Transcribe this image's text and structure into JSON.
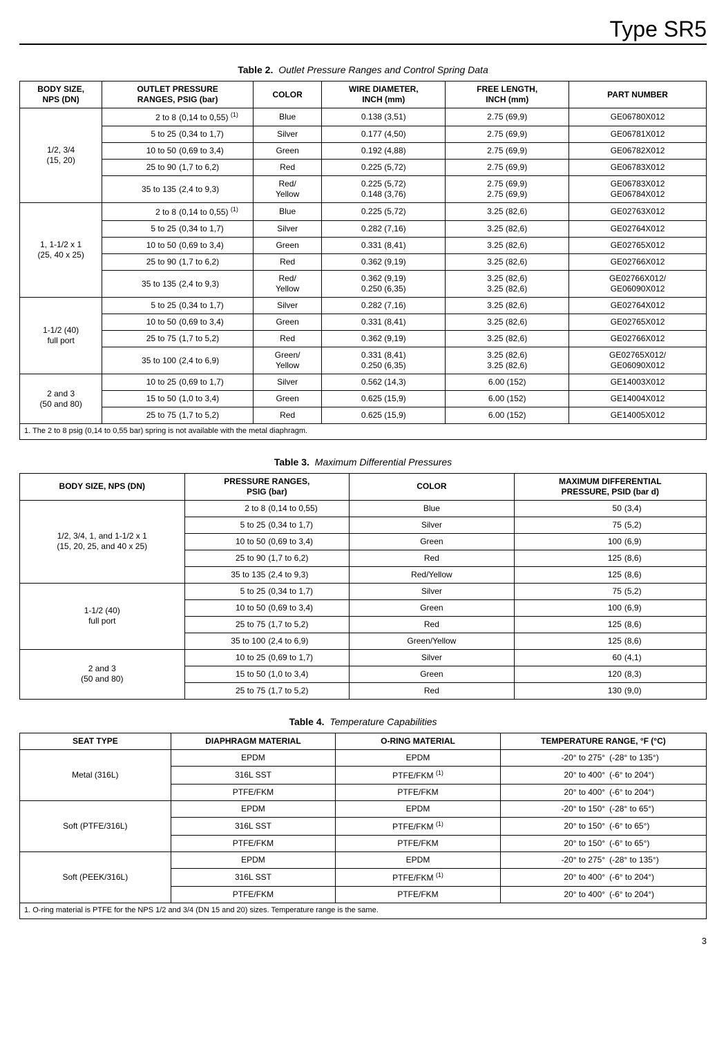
{
  "pageTitle": "Type SR5",
  "pageNumber": "3",
  "table2": {
    "caption_bold": "Table 2.",
    "caption_ital": "Outlet Pressure Ranges and Control Spring Data",
    "headers": [
      "BODY SIZE,\nNPS (DN)",
      "OUTLET PRESSURE\nRANGES, PSIG (bar)",
      "COLOR",
      "WIRE DIAMETER,\nINCH (mm)",
      "FREE LENGTH,\nINCH (mm)",
      "PART NUMBER"
    ],
    "groups": [
      {
        "body": "1/2, 3/4\n(15, 20)",
        "rows": [
          {
            "rl": "2 to 8",
            "rr": "(0,14 to 0,55)",
            "sup": "(1)",
            "color": "Blue",
            "wd": "0.138 (3,51)",
            "fl": "2.75 (69,9)",
            "pn": "GE06780X012"
          },
          {
            "rl": "5 to 25",
            "rr": "(0,34 to 1,7)",
            "color": "Silver",
            "wd": "0.177 (4,50)",
            "fl": "2.75 (69,9)",
            "pn": "GE06781X012"
          },
          {
            "rl": "10 to 50",
            "rr": "(0,69 to 3,4)",
            "color": "Green",
            "wd": "0.192 (4,88)",
            "fl": "2.75 (69,9)",
            "pn": "GE06782X012"
          },
          {
            "rl": "25 to 90",
            "rr": "(1,7 to 6,2)",
            "color": "Red",
            "wd": "0.225 (5,72)",
            "fl": "2.75 (69,9)",
            "pn": "GE06783X012"
          },
          {
            "rl": "35 to 135",
            "rr": "(2,4 to 9,3)",
            "color": "Red/\nYellow",
            "wd": "0.225 (5,72)\n0.148 (3,76)",
            "fl": "2.75 (69,9)\n2.75 (69,9)",
            "pn": "GE06783X012\nGE06784X012"
          }
        ]
      },
      {
        "body": "1, 1-1/2 x 1\n(25, 40 x 25)",
        "rows": [
          {
            "rl": "2 to 8",
            "rr": "(0,14 to 0,55)",
            "sup": "(1)",
            "color": "Blue",
            "wd": "0.225 (5,72)",
            "fl": "3.25 (82,6)",
            "pn": "GE02763X012"
          },
          {
            "rl": "5 to 25",
            "rr": "(0,34 to 1,7)",
            "color": "Silver",
            "wd": "0.282 (7,16)",
            "fl": "3.25 (82,6)",
            "pn": "GE02764X012"
          },
          {
            "rl": "10 to 50",
            "rr": "(0,69 to 3,4)",
            "color": "Green",
            "wd": "0.331 (8,41)",
            "fl": "3.25 (82,6)",
            "pn": "GE02765X012"
          },
          {
            "rl": "25 to 90",
            "rr": "(1,7 to 6,2)",
            "color": "Red",
            "wd": "0.362 (9,19)",
            "fl": "3.25 (82,6)",
            "pn": "GE02766X012"
          },
          {
            "rl": "35 to 135",
            "rr": "(2,4 to 9,3)",
            "color": "Red/\nYellow",
            "wd": "0.362 (9,19)\n0.250 (6,35)",
            "fl": "3.25 (82,6)\n3.25 (82,6)",
            "pn": "GE02766X012/\nGE06090X012"
          }
        ]
      },
      {
        "body": "1-1/2 (40)\nfull port",
        "rows": [
          {
            "rl": "5 to 25",
            "rr": "(0,34 to 1,7)",
            "color": "Silver",
            "wd": "0.282 (7,16)",
            "fl": "3.25 (82,6)",
            "pn": "GE02764X012"
          },
          {
            "rl": "10 to 50",
            "rr": "(0,69 to 3,4)",
            "color": "Green",
            "wd": "0.331 (8,41)",
            "fl": "3.25 (82,6)",
            "pn": "GE02765X012"
          },
          {
            "rl": "25 to 75",
            "rr": "(1,7 to 5,2)",
            "color": "Red",
            "wd": "0.362 (9,19)",
            "fl": "3.25 (82,6)",
            "pn": "GE02766X012"
          },
          {
            "rl": "35 to 100",
            "rr": "(2,4 to 6,9)",
            "color": "Green/\nYellow",
            "wd": "0.331 (8,41)\n0.250 (6,35)",
            "fl": "3.25 (82,6)\n3.25 (82,6)",
            "pn": "GE02765X012/\nGE06090X012"
          }
        ]
      },
      {
        "body": "2 and 3\n(50 and 80)",
        "rows": [
          {
            "rl": "10 to 25",
            "rr": "(0,69 to 1,7)",
            "color": "Silver",
            "wd": "0.562 (14,3)",
            "fl": "6.00 (152)",
            "pn": "GE14003X012"
          },
          {
            "rl": "15 to 50",
            "rr": "(1,0 to 3,4)",
            "color": "Green",
            "wd": "0.625 (15,9)",
            "fl": "6.00 (152)",
            "pn": "GE14004X012"
          },
          {
            "rl": "25 to 75",
            "rr": "(1,7 to 5,2)",
            "color": "Red",
            "wd": "0.625 (15,9)",
            "fl": "6.00 (152)",
            "pn": "GE14005X012"
          }
        ]
      }
    ],
    "footnote": "1. The 2 to 8 psig (0,14 to 0,55 bar) spring is not available with the metal diaphragm."
  },
  "table3": {
    "caption_bold": "Table 3.",
    "caption_ital": "Maximum Differential Pressures",
    "headers": [
      "BODY SIZE, NPS (DN)",
      "PRESSURE RANGES,\nPSIG (bar)",
      "COLOR",
      "MAXIMUM DIFFERENTIAL\nPRESSURE, PSID (bar d)"
    ],
    "groups": [
      {
        "body": "1/2, 3/4, 1, and 1-1/2 x 1\n(15, 20, 25, and 40 x 25)",
        "rows": [
          {
            "rl": "2 to 8",
            "rr": "(0,14 to 0,55)",
            "color": "Blue",
            "ml": "50",
            "mr": "(3,4)"
          },
          {
            "rl": "5 to 25",
            "rr": "(0,34 to 1,7)",
            "color": "Silver",
            "ml": "75",
            "mr": "(5,2)"
          },
          {
            "rl": "10 to 50",
            "rr": "(0,69 to 3,4)",
            "color": "Green",
            "ml": "100",
            "mr": "(6,9)"
          },
          {
            "rl": "25 to 90",
            "rr": "(1,7 to 6,2)",
            "color": "Red",
            "ml": "125",
            "mr": "(8,6)"
          },
          {
            "rl": "35 to 135",
            "rr": "(2,4 to 9,3)",
            "color": "Red/Yellow",
            "ml": "125",
            "mr": "(8,6)"
          }
        ]
      },
      {
        "body": "1-1/2 (40)\nfull port",
        "rows": [
          {
            "rl": "5 to 25",
            "rr": "(0,34 to 1,7)",
            "color": "Silver",
            "ml": "75",
            "mr": "(5,2)"
          },
          {
            "rl": "10 to 50",
            "rr": "(0,69 to 3,4)",
            "color": "Green",
            "ml": "100",
            "mr": "(6,9)"
          },
          {
            "rl": "25 to 75",
            "rr": "(1,7 to 5,2)",
            "color": "Red",
            "ml": "125",
            "mr": "(8,6)"
          },
          {
            "rl": "35 to 100",
            "rr": "(2,4 to 6,9)",
            "color": "Green/Yellow",
            "ml": "125",
            "mr": "(8,6)"
          }
        ]
      },
      {
        "body": "2 and 3\n(50 and 80)",
        "rows": [
          {
            "rl": "10 to 25",
            "rr": "(0,69 to 1,7)",
            "color": "Silver",
            "ml": "60",
            "mr": "(4,1)"
          },
          {
            "rl": "15 to 50",
            "rr": "(1,0 to 3,4)",
            "color": "Green",
            "ml": "120",
            "mr": "(8,3)"
          },
          {
            "rl": "25 to 75",
            "rr": "(1,7 to 5,2)",
            "color": "Red",
            "ml": "130",
            "mr": "(9,0)"
          }
        ]
      }
    ]
  },
  "table4": {
    "caption_bold": "Table 4.",
    "caption_ital": "Temperature Capabilities",
    "headers": [
      "SEAT TYPE",
      "DIAPHRAGM MATERIAL",
      "O-RING MATERIAL",
      "TEMPERATURE RANGE, °F (°C)"
    ],
    "groups": [
      {
        "seat": "Metal (316L)",
        "rows": [
          {
            "dm": "EPDM",
            "or": "EPDM",
            "tl": "-20° to 275°",
            "tr": "(-28° to 135°)"
          },
          {
            "dm": "316L SST",
            "or": "PTFE/FKM",
            "orsup": "(1)",
            "tl": "20° to 400°",
            "tr": "(-6° to 204°)"
          },
          {
            "dm": "PTFE/FKM",
            "or": "PTFE/FKM",
            "tl": "20° to 400°",
            "tr": "(-6° to 204°)"
          }
        ]
      },
      {
        "seat": "Soft (PTFE/316L)",
        "rows": [
          {
            "dm": "EPDM",
            "or": "EPDM",
            "tl": "-20° to 150°",
            "tr": "(-28° to 65°)"
          },
          {
            "dm": "316L SST",
            "or": "PTFE/FKM",
            "orsup": "(1)",
            "tl": "20° to 150°",
            "tr": "(-6° to 65°)"
          },
          {
            "dm": "PTFE/FKM",
            "or": "PTFE/FKM",
            "tl": "20° to 150°",
            "tr": "(-6° to 65°)"
          }
        ]
      },
      {
        "seat": "Soft (PEEK/316L)",
        "rows": [
          {
            "dm": "EPDM",
            "or": "EPDM",
            "tl": "-20° to 275°",
            "tr": "(-28° to 135°)"
          },
          {
            "dm": "316L SST",
            "or": "PTFE/FKM",
            "orsup": "(1)",
            "tl": "20° to 400°",
            "tr": "(-6° to 204°)"
          },
          {
            "dm": "PTFE/FKM",
            "or": "PTFE/FKM",
            "tl": "20° to 400°",
            "tr": "(-6° to 204°)"
          }
        ]
      }
    ],
    "footnote": "1.  O-ring material is PTFE for the NPS 1/2 and 3/4 (DN 15 and 20) sizes.  Temperature range is the same."
  }
}
